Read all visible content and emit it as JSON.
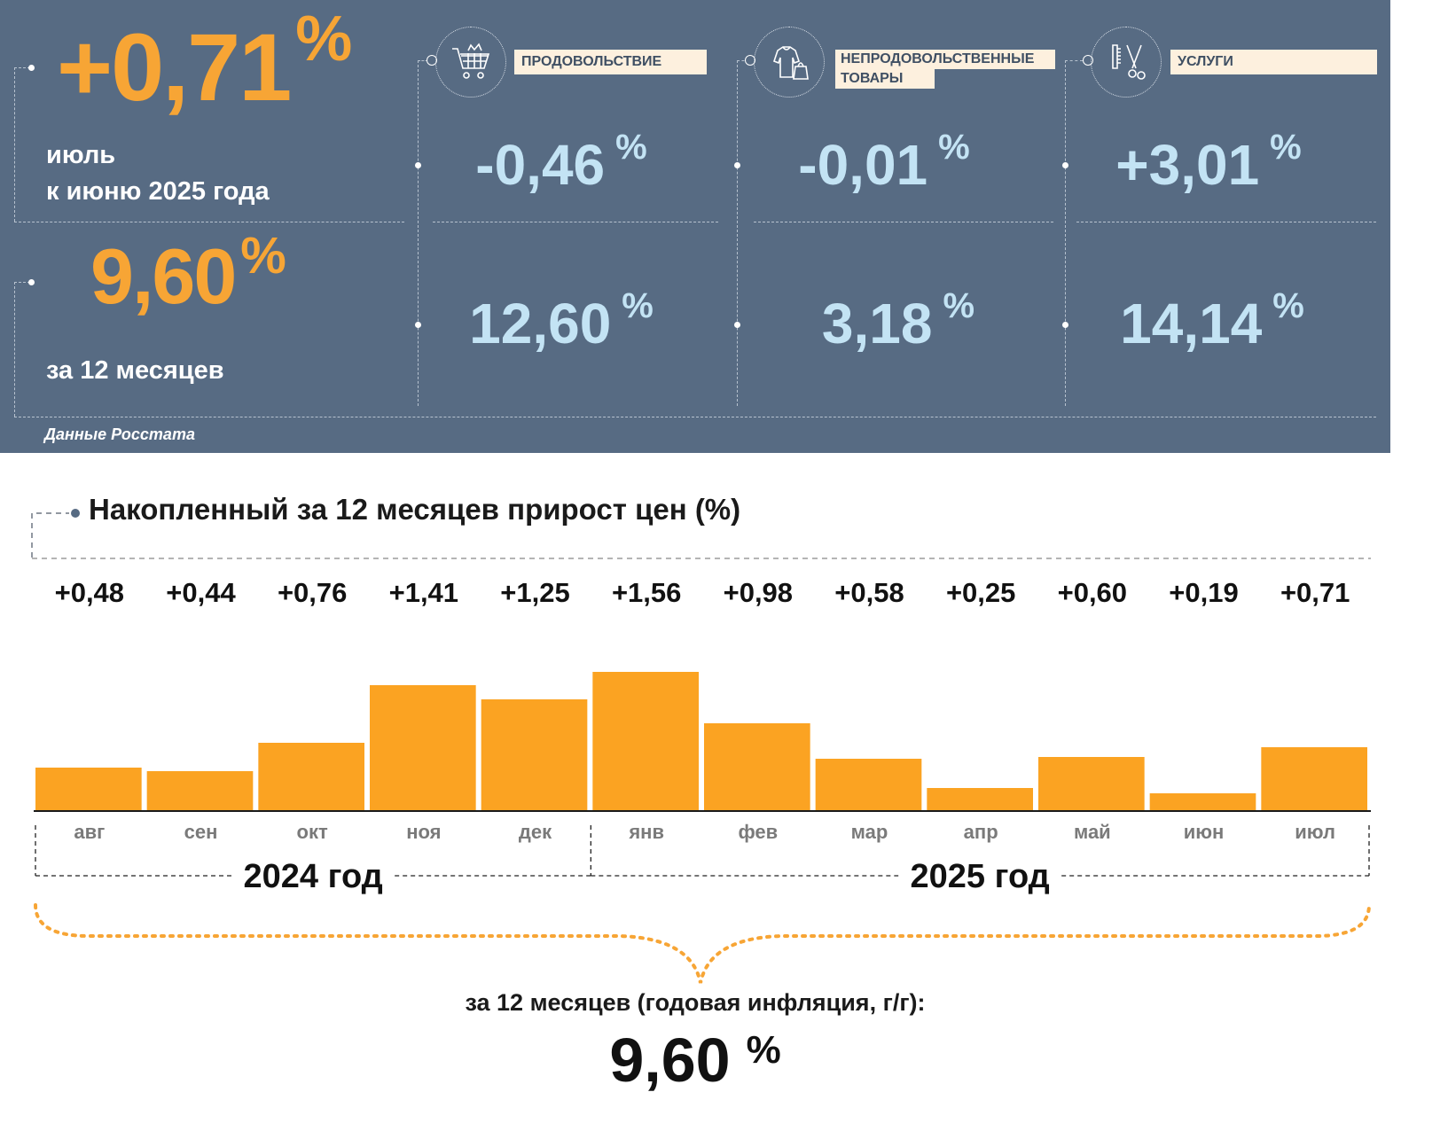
{
  "summary": {
    "monthly": {
      "value": "+0,71",
      "unit": "%",
      "label_line1": "июль",
      "label_line2": "к июню 2025 года"
    },
    "annual": {
      "value": "9,60",
      "unit": "%",
      "label": "за 12 месяцев"
    },
    "source": "Данные Росстата"
  },
  "categories": [
    {
      "id": "food",
      "icon": "shopping-cart-icon",
      "label_lines": [
        "ПРОДОВОЛЬСТВИЕ"
      ],
      "monthly": "-0,46",
      "annual": "12,60",
      "unit": "%"
    },
    {
      "id": "nonfood",
      "icon": "clothes-bag-icon",
      "label_lines": [
        "НЕПРОДОВОЛЬСТВЕННЫЕ",
        "ТОВАРЫ"
      ],
      "monthly": "-0,01",
      "annual": "3,18",
      "unit": "%"
    },
    {
      "id": "services",
      "icon": "scissors-comb-icon",
      "label_lines": [
        "УСЛУГИ"
      ],
      "monthly": "+3,01",
      "annual": "14,14",
      "unit": "%"
    }
  ],
  "colors": {
    "panel": "#576b83",
    "accent": "#f7a535",
    "value_light": "#c3e3f4",
    "label_bg": "#fdf0de",
    "bar": "#fba322"
  },
  "chart_data": {
    "type": "bar",
    "title": "Накопленный за 12 месяцев прирост цен (%)",
    "categories": [
      "авг",
      "сен",
      "окт",
      "ноя",
      "дек",
      "янв",
      "фев",
      "мар",
      "апр",
      "май",
      "июн",
      "июл"
    ],
    "values": [
      0.48,
      0.44,
      0.76,
      1.41,
      1.25,
      1.56,
      0.98,
      0.58,
      0.25,
      0.6,
      0.19,
      0.71
    ],
    "value_labels": [
      "+0,48",
      "+0,44",
      "+0,76",
      "+1,41",
      "+1,25",
      "+1,56",
      "+0,98",
      "+0,58",
      "+0,25",
      "+0,60",
      "+0,19",
      "+0,71"
    ],
    "year_groups": [
      {
        "label": "2024 год",
        "count": 5
      },
      {
        "label": "2025 год",
        "count": 7
      }
    ],
    "ylim": [
      0,
      1.6
    ],
    "grid": false,
    "legend": "none",
    "annual_caption": "за 12 месяцев (годовая инфляция, г/г):",
    "annual_value": "9,60",
    "annual_unit": "%"
  }
}
